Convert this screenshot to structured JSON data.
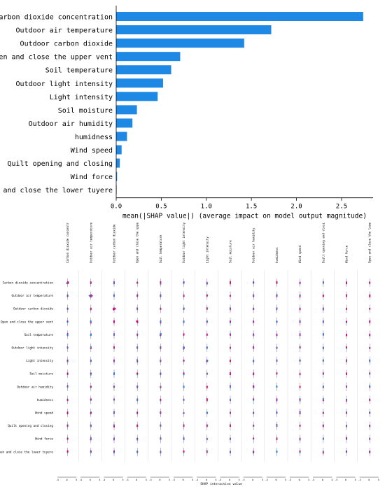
{
  "colors": {
    "bar": "#1e88e5",
    "low": "#1e88e5",
    "high": "#e6006e",
    "mid": "#9b3bb8"
  },
  "chart_data": [
    {
      "type": "bar",
      "orientation": "horizontal",
      "categories": [
        "Carbon dioxide concentration",
        "Outdoor air temperature",
        "Outdoor carbon dioxide",
        "Open and close the upper vent",
        "Soil temperature",
        "Outdoor light intensity",
        "Light intensity",
        "Soil moisture",
        "Outdoor air humidity",
        "humidness",
        "Wind speed",
        "Quilt opening and closing",
        "Wind force",
        "Open and close the lower tuyere"
      ],
      "values": [
        2.74,
        1.72,
        1.42,
        0.71,
        0.61,
        0.52,
        0.46,
        0.23,
        0.18,
        0.12,
        0.06,
        0.04,
        0.01,
        0.005
      ],
      "xlabel": "mean(|SHAP value|) (average impact on model output magnitude)",
      "xlim": [
        0,
        2.85
      ],
      "xticks": [
        0.0,
        0.5,
        1.0,
        1.5,
        2.0,
        2.5
      ],
      "xtick_labels": [
        "0.0",
        "0.5",
        "1.0",
        "1.5",
        "2.0",
        "2.5"
      ]
    },
    {
      "type": "scatter",
      "subtype": "shap-interaction-matrix",
      "features": [
        "Carbon dioxide concentration",
        "Outdoor air temperature",
        "Outdoor carbon dioxide",
        "Open and close the upper vent",
        "Soil temperature",
        "Outdoor light intensity",
        "Light intensity",
        "Soil moisture",
        "Outdoor air humidity",
        "humidness",
        "Wind speed",
        "Quilt opening and closing",
        "Wind force",
        "Open and close the lower tuyere"
      ],
      "xlabel": "SHAP interaction value",
      "cell_xlim": [
        -5,
        5
      ],
      "cell_xticks": [
        -5,
        0,
        5
      ],
      "cell_xtick_labels": [
        "-5",
        "0",
        "5"
      ],
      "diag_spread": [
        1.6,
        2.4,
        1.5,
        0.7,
        0.6,
        0.6,
        0.9,
        0.3,
        0.3,
        0.2,
        0.1,
        0.1,
        0.1,
        0.05
      ],
      "off_diag_spread": 0.25
    }
  ]
}
